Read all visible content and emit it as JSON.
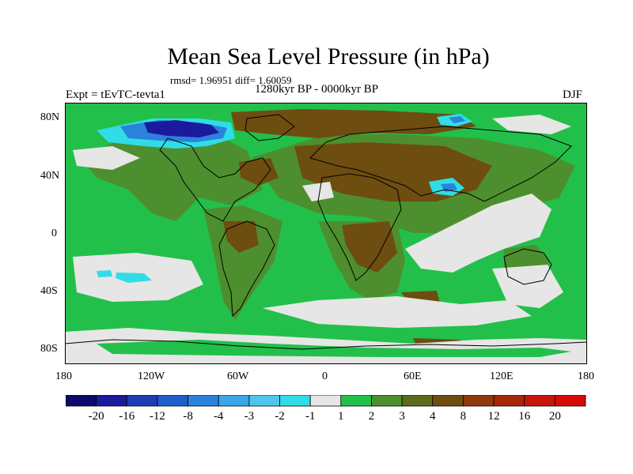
{
  "title": "Mean Sea Level Pressure (in hPa)",
  "stats": "rmsd= 1.96951 diff= 1.60059",
  "period": "1280kyr BP - 0000kyr BP",
  "expt": "Expt = tEvTC-tevta1",
  "season": "DJF",
  "y_axis": [
    "80N",
    "40N",
    "0",
    "40S",
    "80S"
  ],
  "x_axis": [
    "180",
    "120W",
    "60W",
    "0",
    "60E",
    "120E",
    "180"
  ],
  "colorbar": {
    "labels": [
      "-20",
      "-16",
      "-12",
      "-8",
      "-4",
      "-3",
      "-2",
      "-1",
      "1",
      "2",
      "3",
      "4",
      "8",
      "12",
      "16",
      "20"
    ],
    "colors": [
      "#0d0a6b",
      "#1b1a9c",
      "#1f3cb5",
      "#1f5fcc",
      "#2b82dc",
      "#3aa6e6",
      "#4cc6ec",
      "#30dde6",
      "#e6e6e6",
      "#22c04b",
      "#4d8f2e",
      "#5a6b1c",
      "#6e4d10",
      "#8d3b0d",
      "#a8260a",
      "#c8140a",
      "#d80a08"
    ]
  },
  "map_colors": {
    "ocean_green": "#22c04b",
    "dark_green": "#4d8f2e",
    "brown": "#6e4d10",
    "light_grey": "#e6e6e6",
    "cyan": "#30dde6",
    "light_blue": "#3aa6e6",
    "blue": "#2b82dc",
    "dark_blue": "#1b1a9c"
  }
}
